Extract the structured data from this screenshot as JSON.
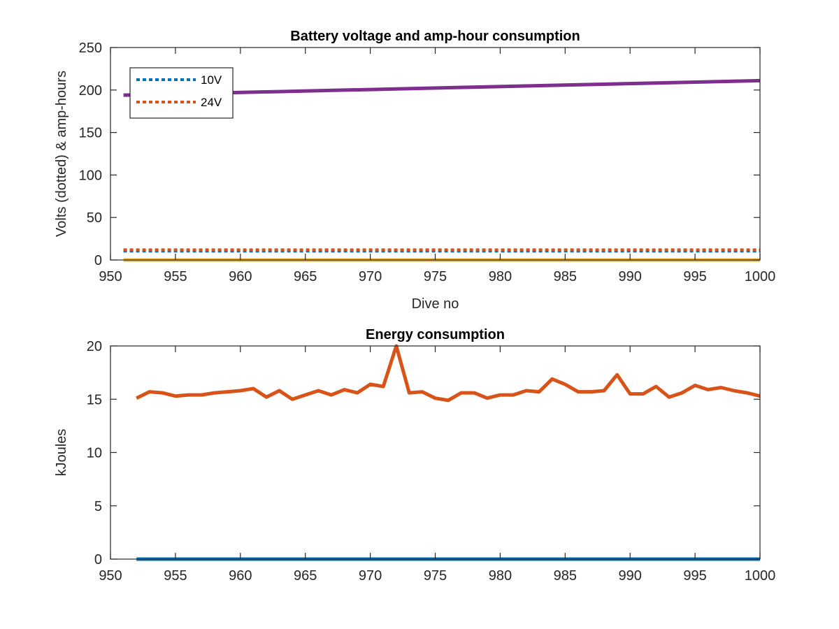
{
  "chart_data": [
    {
      "type": "line",
      "title": "Battery voltage and amp-hour consumption",
      "xlabel": "Dive no",
      "ylabel": "Volts (dotted) & amp-hours",
      "xlim": [
        950,
        1000
      ],
      "ylim": [
        0,
        250
      ],
      "xticks": [
        950,
        955,
        960,
        965,
        970,
        975,
        980,
        985,
        990,
        995,
        1000
      ],
      "yticks": [
        0,
        50,
        100,
        150,
        200,
        250
      ],
      "legend_position": "top-left",
      "series": [
        {
          "name": "10V",
          "style": "dotted",
          "color": "#0072BD",
          "x": [
            951,
            1000
          ],
          "y": [
            10.5,
            10.5
          ]
        },
        {
          "name": "24V",
          "style": "dotted",
          "color": "#D95319",
          "x": [
            951,
            1000
          ],
          "y": [
            12,
            12
          ]
        },
        {
          "style": "solid",
          "color": "#7E2F8E",
          "x": [
            951,
            1000
          ],
          "y": [
            194,
            211
          ]
        },
        {
          "style": "solid",
          "color": "#EDB120",
          "x": [
            951,
            1000
          ],
          "y": [
            0,
            0
          ]
        }
      ]
    },
    {
      "type": "line",
      "title": "Energy consumption",
      "xlabel": "",
      "ylabel": "kJoules",
      "xlim": [
        950,
        1000
      ],
      "ylim": [
        0,
        20
      ],
      "xticks": [
        950,
        955,
        960,
        965,
        970,
        975,
        980,
        985,
        990,
        995,
        1000
      ],
      "yticks": [
        0,
        5,
        10,
        15,
        20
      ],
      "series": [
        {
          "style": "solid",
          "color": "#D95319",
          "x": [
            952,
            953,
            954,
            955,
            956,
            957,
            958,
            959,
            960,
            961,
            962,
            963,
            964,
            965,
            966,
            967,
            968,
            969,
            970,
            971,
            972,
            973,
            974,
            975,
            976,
            977,
            978,
            979,
            980,
            981,
            982,
            983,
            984,
            985,
            986,
            987,
            988,
            989,
            990,
            991,
            992,
            993,
            994,
            995,
            996,
            997,
            998,
            999,
            1000
          ],
          "y": [
            15.1,
            15.7,
            15.6,
            15.3,
            15.4,
            15.4,
            15.6,
            15.7,
            15.8,
            16.0,
            15.2,
            15.8,
            15.0,
            15.4,
            15.8,
            15.4,
            15.9,
            15.6,
            16.4,
            16.2,
            20.0,
            15.6,
            15.7,
            15.1,
            14.9,
            15.6,
            15.6,
            15.1,
            15.4,
            15.4,
            15.8,
            15.7,
            16.9,
            16.4,
            15.7,
            15.7,
            15.8,
            17.3,
            15.5,
            15.5,
            16.2,
            15.2,
            15.6,
            16.3,
            15.9,
            16.1,
            15.8,
            15.6,
            15.3
          ]
        },
        {
          "style": "solid",
          "color": "#0072BD",
          "x": [
            952,
            1000
          ],
          "y": [
            0,
            0
          ]
        }
      ]
    }
  ]
}
